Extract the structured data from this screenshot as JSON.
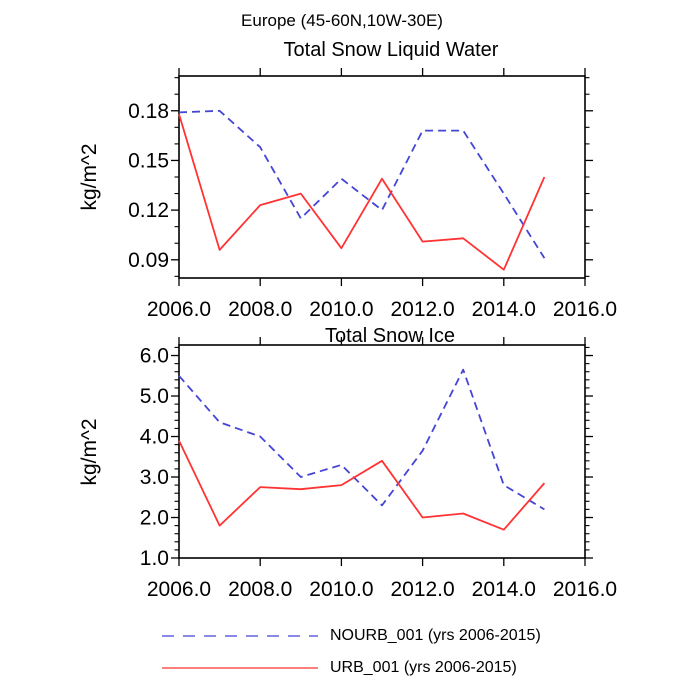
{
  "header": {
    "title": "Europe (45-60N,10W-30E)"
  },
  "chart_data": [
    {
      "type": "line",
      "title": "Total Snow Liquid Water",
      "ylabel": "kg/m^2",
      "x": [
        2006,
        2007,
        2008,
        2009,
        2010,
        2011,
        2012,
        2013,
        2014,
        2015
      ],
      "series": [
        {
          "name": "NOURB_001 (yrs 2006-2015)",
          "color": "#4545d5",
          "line_style": "dashed",
          "values": [
            0.179,
            0.18,
            0.158,
            0.115,
            0.139,
            0.12,
            0.168,
            0.168,
            0.13,
            0.091
          ]
        },
        {
          "name": "URB_001 (yrs 2006-2015)",
          "color": "#ff3333",
          "line_style": "solid",
          "values": [
            0.178,
            0.096,
            0.123,
            0.13,
            0.097,
            0.139,
            0.101,
            0.103,
            0.084,
            0.14
          ]
        }
      ],
      "xlim": [
        2006,
        2016
      ],
      "ylim": [
        0.079,
        0.201
      ],
      "xticks": [
        2006,
        2008,
        2010,
        2012,
        2014,
        2016
      ],
      "xtick_labels": [
        "2006.0",
        "2008.0",
        "2010.0",
        "2012.0",
        "2014.0",
        "2016.0"
      ],
      "yticks": [
        0.09,
        0.12,
        0.15,
        0.18
      ],
      "ytick_labels": [
        "0.09",
        "0.12",
        "0.15",
        "0.18"
      ],
      "yminor": {
        "start": 0.08,
        "end": 0.2,
        "step": 0.01
      },
      "grid": false
    },
    {
      "type": "line",
      "title": "Total Snow Ice",
      "ylabel": "kg/m^2",
      "x": [
        2006,
        2007,
        2008,
        2009,
        2010,
        2011,
        2012,
        2013,
        2014,
        2015
      ],
      "series": [
        {
          "name": "NOURB_001 (yrs 2006-2015)",
          "color": "#4545d5",
          "line_style": "dashed",
          "values": [
            5.5,
            4.35,
            4.0,
            3.0,
            3.3,
            2.3,
            3.65,
            5.65,
            2.8,
            2.2
          ]
        },
        {
          "name": "URB_001 (yrs 2006-2015)",
          "color": "#ff3333",
          "line_style": "solid",
          "values": [
            3.9,
            1.8,
            2.75,
            2.7,
            2.8,
            3.4,
            2.0,
            2.1,
            1.7,
            2.85
          ]
        }
      ],
      "xlim": [
        2006,
        2016
      ],
      "ylim": [
        1.0,
        6.26
      ],
      "xticks": [
        2006,
        2008,
        2010,
        2012,
        2014,
        2016
      ],
      "xtick_labels": [
        "2006.0",
        "2008.0",
        "2010.0",
        "2012.0",
        "2014.0",
        "2016.0"
      ],
      "yticks": [
        1.0,
        2.0,
        3.0,
        4.0,
        5.0,
        6.0
      ],
      "ytick_labels": [
        "1.0",
        "2.0",
        "3.0",
        "4.0",
        "5.0",
        "6.0"
      ],
      "yminor": {
        "start": 1.0,
        "end": 6.2,
        "step": 0.2
      },
      "grid": false
    }
  ],
  "legend": {
    "items": [
      {
        "label": "NOURB_001 (yrs 2006-2015)",
        "color": "#4545d5",
        "style": "dashed"
      },
      {
        "label": "URB_001 (yrs 2006-2015)",
        "color": "#ff3333",
        "style": "solid"
      }
    ]
  }
}
